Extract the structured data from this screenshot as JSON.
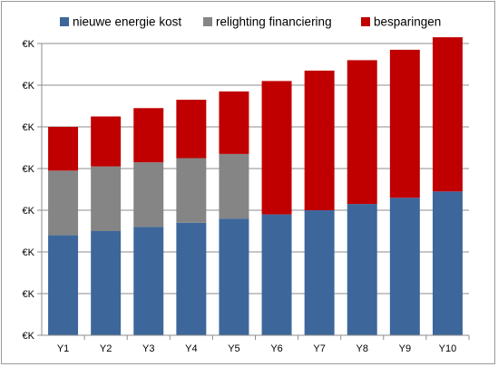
{
  "chart_data": {
    "type": "bar",
    "stacked": true,
    "categories": [
      "Y1",
      "Y2",
      "Y3",
      "Y4",
      "Y5",
      "Y6",
      "Y7",
      "Y8",
      "Y9",
      "Y10"
    ],
    "series": [
      {
        "name": "nieuwe energie kost",
        "color": "#3d679b",
        "values": [
          2.4,
          2.5,
          2.6,
          2.7,
          2.8,
          2.9,
          3.0,
          3.15,
          3.3,
          3.45
        ]
      },
      {
        "name": "relighting financiering",
        "color": "#858585",
        "values": [
          1.55,
          1.55,
          1.55,
          1.55,
          1.55,
          0,
          0,
          0,
          0,
          0
        ]
      },
      {
        "name": "besparingen",
        "color": "#c00000",
        "values": [
          1.05,
          1.2,
          1.3,
          1.4,
          1.5,
          3.2,
          3.35,
          3.45,
          3.55,
          3.7
        ]
      }
    ],
    "y_tick_labels": [
      "€K",
      "€K",
      "€K",
      "€K",
      "€K",
      "€K",
      "€K",
      "€K"
    ],
    "ylim": [
      0,
      7
    ],
    "grid": true,
    "legend_position": "top"
  }
}
